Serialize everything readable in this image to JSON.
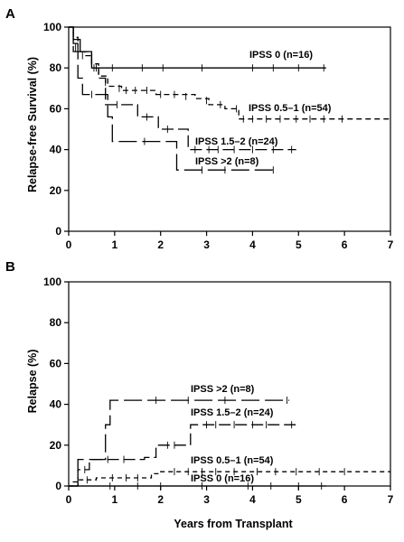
{
  "chart_data": [
    {
      "type": "line",
      "panel": "A",
      "ylabel": "Relapse-free Survival (%)",
      "xlabel": "",
      "xlim": [
        0,
        7
      ],
      "ylim": [
        0,
        100
      ],
      "xticks": [
        "0",
        "1",
        "2",
        "3",
        "4",
        "5",
        "6",
        "7"
      ],
      "yticks": [
        "0",
        "20",
        "40",
        "60",
        "80",
        "100"
      ],
      "series": [
        {
          "name": "IPSS 0 (n=16)",
          "dash": "",
          "points": [
            [
              0,
              100
            ],
            [
              0.1,
              94
            ],
            [
              0.25,
              88
            ],
            [
              0.45,
              88
            ],
            [
              0.5,
              80
            ],
            [
              5.6,
              80
            ]
          ],
          "censors": [
            [
              0.95,
              80
            ],
            [
              1.6,
              80
            ],
            [
              2.05,
              80
            ],
            [
              2.9,
              80
            ],
            [
              4.0,
              80
            ],
            [
              4.45,
              80
            ],
            [
              5.0,
              80
            ],
            [
              5.55,
              80
            ]
          ]
        },
        {
          "name": "IPSS 0.5–1 (n=54)",
          "dash": "6,4",
          "points": [
            [
              0,
              100
            ],
            [
              0.1,
              95
            ],
            [
              0.2,
              88
            ],
            [
              0.35,
              86
            ],
            [
              0.5,
              82
            ],
            [
              0.65,
              76
            ],
            [
              0.85,
              71
            ],
            [
              1.15,
              69
            ],
            [
              1.9,
              67
            ],
            [
              2.75,
              65
            ],
            [
              3.05,
              62
            ],
            [
              3.4,
              60
            ],
            [
              3.7,
              55
            ],
            [
              7.0,
              55
            ]
          ],
          "censors": [
            [
              0.3,
              86
            ],
            [
              0.6,
              80
            ],
            [
              0.8,
              73
            ],
            [
              1.1,
              70
            ],
            [
              1.25,
              69
            ],
            [
              1.45,
              69
            ],
            [
              1.7,
              69
            ],
            [
              2.0,
              67
            ],
            [
              2.3,
              67
            ],
            [
              2.55,
              66
            ],
            [
              3.0,
              64
            ],
            [
              3.3,
              62
            ],
            [
              3.65,
              60
            ],
            [
              3.8,
              55
            ],
            [
              4.0,
              55
            ],
            [
              4.3,
              55
            ],
            [
              4.6,
              55
            ],
            [
              4.95,
              55
            ],
            [
              5.25,
              55
            ],
            [
              5.55,
              55
            ],
            [
              5.95,
              55
            ]
          ]
        },
        {
          "name": "IPSS 1.5–2 (n=24)",
          "dash": "13,5",
          "points": [
            [
              0,
              100
            ],
            [
              0.1,
              92
            ],
            [
              0.2,
              88
            ],
            [
              0.5,
              80
            ],
            [
              0.65,
              75
            ],
            [
              0.8,
              62
            ],
            [
              1.35,
              62
            ],
            [
              1.5,
              56
            ],
            [
              1.95,
              50
            ],
            [
              2.4,
              50
            ],
            [
              2.6,
              40
            ],
            [
              4.95,
              40
            ]
          ],
          "censors": [
            [
              0.15,
              90
            ],
            [
              0.55,
              80
            ],
            [
              1.05,
              62
            ],
            [
              1.7,
              56
            ],
            [
              2.15,
              50
            ],
            [
              2.75,
              40
            ],
            [
              3.05,
              40
            ],
            [
              3.25,
              40
            ],
            [
              3.6,
              40
            ],
            [
              4.0,
              40
            ],
            [
              4.45,
              40
            ],
            [
              4.85,
              40
            ]
          ]
        },
        {
          "name": "IPSS >2 (n=8)",
          "dash": "20,6",
          "points": [
            [
              0,
              100
            ],
            [
              0.1,
              88
            ],
            [
              0.2,
              75
            ],
            [
              0.3,
              67
            ],
            [
              0.65,
              67
            ],
            [
              0.85,
              56
            ],
            [
              0.95,
              44
            ],
            [
              2.3,
              44
            ],
            [
              2.35,
              30
            ],
            [
              4.55,
              30
            ]
          ],
          "censors": [
            [
              0.5,
              67
            ],
            [
              1.65,
              44
            ],
            [
              2.9,
              30
            ],
            [
              3.4,
              30
            ],
            [
              4.45,
              30
            ]
          ]
        }
      ],
      "labels": [
        "IPSS 0 (n=16)",
        "IPSS 0.5–1 (n=54)",
        "IPSS 1.5–2 (n=24)",
        "IPSS >2 (n=8)"
      ]
    },
    {
      "type": "line",
      "panel": "B",
      "ylabel": "Relapse (%)",
      "xlabel": "Years from Transplant",
      "xlim": [
        0,
        7
      ],
      "ylim": [
        0,
        100
      ],
      "xticks": [
        "0",
        "1",
        "2",
        "3",
        "4",
        "5",
        "6",
        "7"
      ],
      "yticks": [
        "0",
        "20",
        "40",
        "60",
        "80",
        "100"
      ],
      "series": [
        {
          "name": "IPSS >2 (n=8)",
          "dash": "20,6",
          "points": [
            [
              0,
              0
            ],
            [
              0.15,
              0
            ],
            [
              0.2,
              13
            ],
            [
              0.65,
              13
            ],
            [
              0.8,
              30
            ],
            [
              0.9,
              42
            ],
            [
              4.8,
              42
            ]
          ],
          "censors": [
            [
              1.9,
              42
            ],
            [
              2.6,
              42
            ],
            [
              3.4,
              42
            ],
            [
              4.75,
              42
            ]
          ]
        },
        {
          "name": "IPSS 1.5–2 (n=24)",
          "dash": "13,5",
          "points": [
            [
              0,
              0
            ],
            [
              0.15,
              0
            ],
            [
              0.2,
              8
            ],
            [
              0.4,
              8
            ],
            [
              0.45,
              13
            ],
            [
              1.55,
              13
            ],
            [
              1.65,
              14
            ],
            [
              1.8,
              14
            ],
            [
              1.9,
              20
            ],
            [
              2.55,
              20
            ],
            [
              2.65,
              30
            ],
            [
              4.95,
              30
            ]
          ],
          "censors": [
            [
              0.35,
              8
            ],
            [
              0.85,
              13
            ],
            [
              1.2,
              13
            ],
            [
              2.15,
              20
            ],
            [
              2.3,
              20
            ],
            [
              3.0,
              30
            ],
            [
              3.2,
              30
            ],
            [
              3.6,
              30
            ],
            [
              4.0,
              30
            ],
            [
              4.3,
              30
            ],
            [
              4.85,
              30
            ]
          ]
        },
        {
          "name": "IPSS 0.5–1 (n=54)",
          "dash": "5,4",
          "points": [
            [
              0,
              0
            ],
            [
              0.1,
              2
            ],
            [
              0.2,
              3
            ],
            [
              0.5,
              3
            ],
            [
              0.6,
              4
            ],
            [
              1.7,
              4
            ],
            [
              1.8,
              6
            ],
            [
              2.0,
              7
            ],
            [
              7.0,
              7
            ]
          ],
          "censors": [
            [
              0.4,
              3
            ],
            [
              0.95,
              4
            ],
            [
              1.25,
              4
            ],
            [
              1.5,
              4
            ],
            [
              2.3,
              7
            ],
            [
              2.6,
              7
            ],
            [
              2.9,
              7
            ],
            [
              3.2,
              7
            ],
            [
              3.6,
              7
            ],
            [
              4.1,
              7
            ],
            [
              4.5,
              7
            ],
            [
              4.95,
              7
            ],
            [
              5.45,
              7
            ],
            [
              6.0,
              7
            ]
          ]
        },
        {
          "name": "IPSS 0 (n=16)",
          "dash": "",
          "points": [
            [
              0,
              0
            ],
            [
              5.6,
              0
            ]
          ],
          "censors": [
            [
              0.9,
              0
            ],
            [
              1.5,
              0
            ],
            [
              2.0,
              0
            ],
            [
              2.9,
              0
            ],
            [
              3.9,
              0
            ],
            [
              4.4,
              0
            ],
            [
              5.0,
              0
            ],
            [
              5.5,
              0
            ]
          ]
        }
      ],
      "labels": [
        "IPSS >2 (n=8)",
        "IPSS 1.5–2 (n=24)",
        "IPSS 0.5–1 (n=54)",
        "IPSS 0 (n=16)"
      ]
    }
  ]
}
